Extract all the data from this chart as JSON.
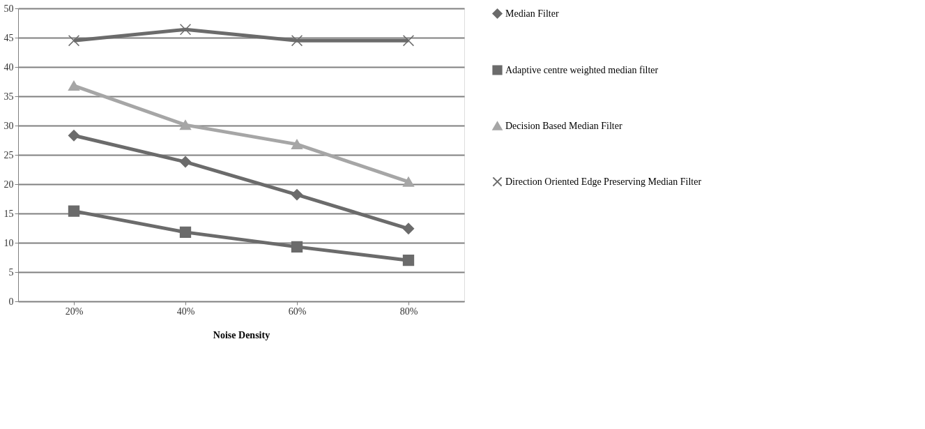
{
  "chart_data": {
    "type": "line",
    "xlabel": "Noise Density",
    "categories": [
      "20%",
      "40%",
      "60%",
      "80%"
    ],
    "series": [
      {
        "name": "Median Filter",
        "color": "#6b6b6b",
        "marker": "diamond",
        "values": [
          28.3,
          23.8,
          18.2,
          12.4
        ]
      },
      {
        "name": "Adaptive centre weighted median filter",
        "color": "#6b6b6b",
        "marker": "square",
        "values": [
          15.4,
          11.8,
          9.3,
          7.0
        ]
      },
      {
        "name": "Decision Based Median Filter",
        "color": "#a6a6a6",
        "marker": "triangle",
        "values": [
          36.8,
          30.1,
          26.8,
          20.4
        ]
      },
      {
        "name": "Direction Oriented Edge Preserving Median Filter",
        "color": "#6b6b6b",
        "marker": "cross",
        "values": [
          44.5,
          46.4,
          44.5,
          44.5
        ]
      }
    ],
    "ylim": [
      0,
      50
    ],
    "yticks": [
      0,
      5,
      10,
      15,
      20,
      25,
      30,
      35,
      40,
      45,
      50
    ],
    "grid": "y",
    "legend": "right",
    "line_style": "solid"
  }
}
